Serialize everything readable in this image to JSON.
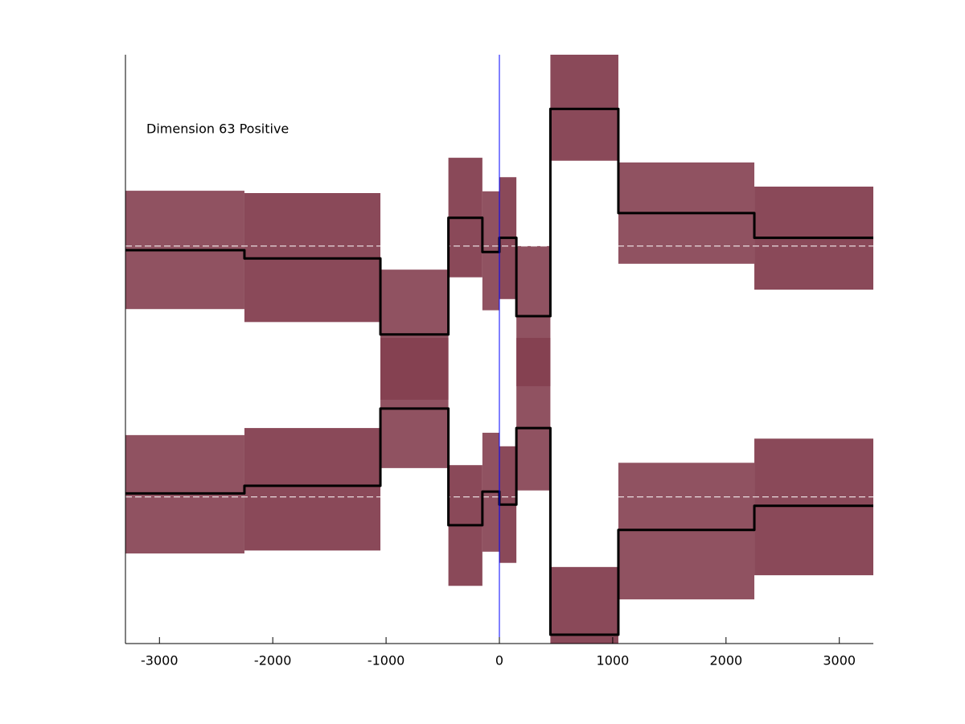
{
  "chart_data": {
    "type": "step",
    "annotation": "Dimension 63 Positive",
    "x_edges": [
      -3300,
      -2250,
      -1050,
      -450,
      -150,
      0,
      150,
      450,
      1050,
      2250,
      3300
    ],
    "series": [
      {
        "color": "#000000",
        "band_color": "#843f50",
        "values": [
          66.8,
          65.4,
          52.5,
          72.3,
          66.5,
          68.9,
          55.6,
          90.8,
          73.1,
          68.9
        ],
        "lower": [
          56.8,
          54.6,
          41.4,
          62.2,
          56.6,
          58.5,
          43.7,
          82,
          64.5,
          60.1
        ],
        "upper": [
          76.9,
          76.5,
          63.5,
          82.5,
          76.8,
          79.2,
          67.5,
          100,
          81.7,
          77.6
        ]
      },
      {
        "color": "#000000",
        "band_color": "#843f50",
        "values": [
          25.5,
          26.8,
          39.9,
          20.1,
          25.8,
          23.6,
          36.6,
          1.5,
          19.3,
          23.4
        ],
        "lower": [
          15.3,
          15.8,
          29.8,
          9.8,
          15.6,
          13.7,
          26,
          0,
          7.5,
          11.6
        ],
        "upper": [
          35.4,
          36.6,
          51.9,
          30.3,
          35.8,
          33.5,
          51.9,
          13,
          30.7,
          34.8
        ]
      }
    ],
    "reference_lines": [
      67.5,
      24.9
    ],
    "reference_color": "#ffffff",
    "vline": {
      "x": 0,
      "color": "#0000ff"
    },
    "xlim": [
      -3300,
      3300
    ],
    "xticks": [
      -3000,
      -2000,
      -1000,
      0,
      1000,
      2000,
      3000
    ],
    "ylim": [
      0,
      100
    ]
  }
}
